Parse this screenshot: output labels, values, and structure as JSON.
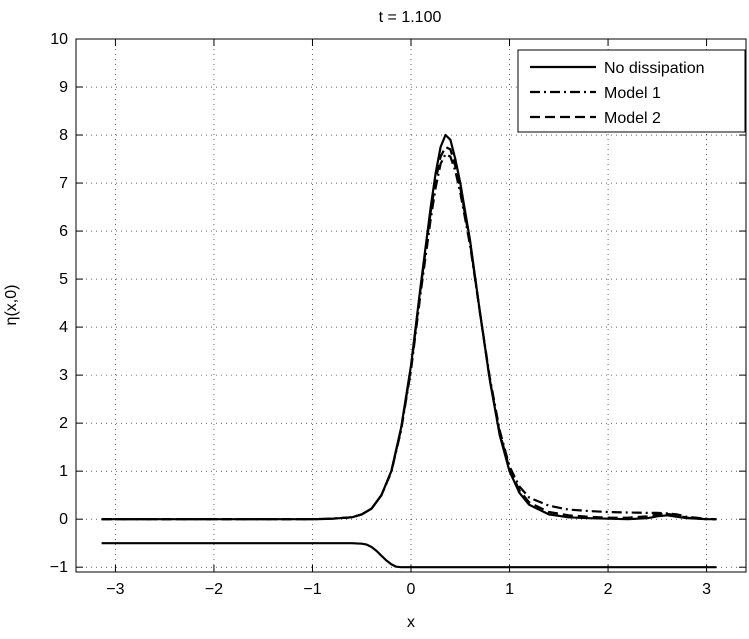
{
  "chart_data": {
    "type": "line",
    "title": "t = 1.100",
    "xlabel": "x",
    "ylabel": "η(x,0)",
    "xlim": [
      -3.4,
      3.4
    ],
    "ylim": [
      -1.1,
      10
    ],
    "xticks": [
      -3,
      -2,
      -1,
      0,
      1,
      2,
      3
    ],
    "yticks": [
      -1,
      0,
      1,
      2,
      3,
      4,
      5,
      6,
      7,
      8,
      9,
      10
    ],
    "grid": true,
    "legend_position": "top-right",
    "series": [
      {
        "name": "No dissipation",
        "style": "solid",
        "x": [
          -3.14,
          -2.5,
          -2.0,
          -1.5,
          -1.0,
          -0.8,
          -0.6,
          -0.5,
          -0.4,
          -0.3,
          -0.2,
          -0.1,
          0.0,
          0.1,
          0.2,
          0.25,
          0.3,
          0.35,
          0.4,
          0.45,
          0.5,
          0.6,
          0.7,
          0.8,
          0.9,
          1.0,
          1.1,
          1.2,
          1.4,
          1.6,
          1.8,
          2.0,
          2.2,
          2.4,
          2.5,
          2.6,
          2.7,
          2.8,
          3.0,
          3.1
        ],
        "y": [
          0.0,
          0.0,
          0.0,
          0.0,
          0.0,
          0.01,
          0.04,
          0.1,
          0.22,
          0.5,
          1.0,
          1.9,
          3.2,
          4.9,
          6.5,
          7.2,
          7.75,
          8.0,
          7.9,
          7.5,
          7.0,
          5.8,
          4.3,
          2.9,
          1.75,
          1.0,
          0.55,
          0.3,
          0.1,
          0.04,
          0.02,
          0.01,
          0.0,
          0.02,
          0.06,
          0.08,
          0.05,
          0.02,
          0.0,
          0.0
        ]
      },
      {
        "name": "Model 1",
        "style": "dashdot",
        "x": [
          -3.14,
          -2.5,
          -2.0,
          -1.5,
          -1.0,
          -0.8,
          -0.6,
          -0.5,
          -0.4,
          -0.3,
          -0.2,
          -0.1,
          0.0,
          0.1,
          0.2,
          0.25,
          0.3,
          0.35,
          0.4,
          0.45,
          0.5,
          0.6,
          0.7,
          0.8,
          0.9,
          1.0,
          1.1,
          1.2,
          1.4,
          1.6,
          1.8,
          2.0,
          2.2,
          2.4,
          2.5,
          2.6,
          2.7,
          2.8,
          3.0,
          3.1
        ],
        "y": [
          0.0,
          0.0,
          0.0,
          0.0,
          0.0,
          0.01,
          0.04,
          0.1,
          0.22,
          0.5,
          0.98,
          1.85,
          3.1,
          4.75,
          6.25,
          6.9,
          7.4,
          7.6,
          7.55,
          7.25,
          6.8,
          5.7,
          4.3,
          2.95,
          1.85,
          1.1,
          0.68,
          0.45,
          0.28,
          0.2,
          0.17,
          0.15,
          0.14,
          0.13,
          0.13,
          0.12,
          0.1,
          0.05,
          0.01,
          0.0
        ]
      },
      {
        "name": "Model 2",
        "style": "dashed",
        "x": [
          -3.14,
          -2.5,
          -2.0,
          -1.5,
          -1.0,
          -0.8,
          -0.6,
          -0.5,
          -0.4,
          -0.3,
          -0.2,
          -0.1,
          0.0,
          0.1,
          0.2,
          0.25,
          0.3,
          0.35,
          0.4,
          0.45,
          0.5,
          0.6,
          0.7,
          0.8,
          0.9,
          1.0,
          1.1,
          1.2,
          1.4,
          1.6,
          1.8,
          2.0,
          2.2,
          2.4,
          2.5,
          2.6,
          2.7,
          2.8,
          3.0,
          3.1
        ],
        "y": [
          0.0,
          0.0,
          0.0,
          0.0,
          0.0,
          0.01,
          0.04,
          0.1,
          0.22,
          0.5,
          0.99,
          1.88,
          3.15,
          4.85,
          6.4,
          7.05,
          7.55,
          7.75,
          7.7,
          7.35,
          6.9,
          5.75,
          4.3,
          2.9,
          1.8,
          1.05,
          0.6,
          0.35,
          0.15,
          0.08,
          0.05,
          0.03,
          0.03,
          0.06,
          0.1,
          0.11,
          0.08,
          0.03,
          0.0,
          0.0
        ]
      },
      {
        "style": "solid",
        "x": [
          -3.14,
          -2.0,
          -1.0,
          -0.6,
          -0.5,
          -0.45,
          -0.4,
          -0.35,
          -0.3,
          -0.25,
          -0.2,
          -0.15,
          -0.1,
          0.0,
          1.0,
          2.0,
          3.1
        ],
        "y": [
          -0.5,
          -0.5,
          -0.5,
          -0.5,
          -0.51,
          -0.53,
          -0.58,
          -0.66,
          -0.76,
          -0.86,
          -0.94,
          -0.99,
          -1.0,
          -1.0,
          -1.0,
          -1.0,
          -1.0
        ]
      }
    ]
  }
}
